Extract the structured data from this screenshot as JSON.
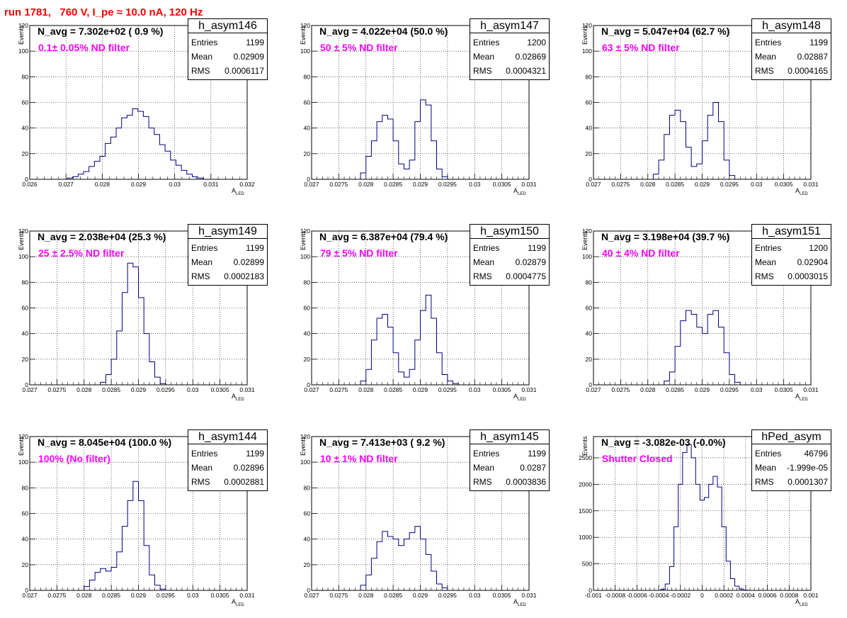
{
  "header": {
    "run_label": "run 1781,   760 V, I_pe ≈ 10.0 nA, 120 Hz"
  },
  "colors": {
    "header": "#ff0000",
    "filter_text": "#ff00ff",
    "hist_line": "#000080",
    "grid": "#000000"
  },
  "axis_labels": {
    "y": "Events",
    "x_main": "A",
    "x_sub": "LED"
  },
  "stat_keys": {
    "entries": "Entries",
    "mean": "Mean",
    "rms": "RMS"
  },
  "chart_data": [
    {
      "type": "bar",
      "title": "h_asym146",
      "n_avg": "N_avg = 7.302e+02 ( 0.9 %)",
      "filter": "0.1± 0.05% ND filter",
      "entries": "1199",
      "mean": "0.02909",
      "rms": "0.0006117",
      "xlim": [
        0.026,
        0.032
      ],
      "ylim": [
        0,
        120
      ],
      "xticks": [
        "0.026",
        "0.027",
        "0.028",
        "0.029",
        "0.03",
        "0.031",
        "0.032"
      ],
      "yticks": [
        "0",
        "20",
        "40",
        "60",
        "80",
        "100",
        "120"
      ],
      "x": [
        0.02711,
        0.02726,
        0.02741,
        0.02756,
        0.02771,
        0.02786,
        0.02801,
        0.02816,
        0.02831,
        0.02846,
        0.02861,
        0.02876,
        0.02891,
        0.02906,
        0.02921,
        0.02936,
        0.02951,
        0.02966,
        0.02981,
        0.02996,
        0.03011,
        0.03026,
        0.03041,
        0.03056,
        0.03071
      ],
      "values": [
        1,
        2,
        4,
        6,
        10,
        14,
        18,
        28,
        33,
        40,
        48,
        50,
        55,
        53,
        49,
        40,
        35,
        27,
        22,
        15,
        11,
        7,
        4,
        2,
        1
      ]
    },
    {
      "type": "bar",
      "title": "h_asym147",
      "n_avg": "N_avg = 4.022e+04 (50.0 %)",
      "filter": "50 ± 5% ND filter",
      "entries": "1200",
      "mean": "0.02869",
      "rms": "0.0004321",
      "xlim": [
        0.027,
        0.031
      ],
      "ylim": [
        0,
        120
      ],
      "xticks": [
        "0.027",
        "0.0275",
        "0.028",
        "0.0285",
        "0.029",
        "0.0295",
        "0.03",
        "0.0305",
        "0.031"
      ],
      "yticks": [
        "0",
        "20",
        "40",
        "60",
        "80",
        "100",
        "120"
      ],
      "x": [
        0.02795,
        0.02805,
        0.02815,
        0.02825,
        0.02835,
        0.02845,
        0.02855,
        0.02865,
        0.02875,
        0.02885,
        0.02895,
        0.02905,
        0.02915,
        0.02925,
        0.02935,
        0.02945
      ],
      "values": [
        5,
        18,
        30,
        45,
        50,
        47,
        30,
        12,
        8,
        15,
        45,
        62,
        58,
        30,
        8,
        2
      ]
    },
    {
      "type": "bar",
      "title": "h_asym148",
      "n_avg": "N_avg = 5.047e+04 (62.7 %)",
      "filter": "63 ± 5% ND filter",
      "entries": "1199",
      "mean": "0.02887",
      "rms": "0.0004165",
      "xlim": [
        0.027,
        0.031
      ],
      "ylim": [
        0,
        120
      ],
      "xticks": [
        "0.027",
        "0.0275",
        "0.028",
        "0.0285",
        "0.029",
        "0.0295",
        "0.03",
        "0.0305",
        "0.031"
      ],
      "yticks": [
        "0",
        "20",
        "40",
        "60",
        "80",
        "100",
        "120"
      ],
      "x": [
        0.02815,
        0.02825,
        0.02835,
        0.02845,
        0.02855,
        0.02865,
        0.02875,
        0.02885,
        0.02895,
        0.02905,
        0.02915,
        0.02925,
        0.02935,
        0.02945,
        0.02955
      ],
      "values": [
        4,
        15,
        35,
        50,
        54,
        45,
        25,
        10,
        12,
        30,
        50,
        60,
        45,
        15,
        3
      ]
    },
    {
      "type": "bar",
      "title": "h_asym149",
      "n_avg": "N_avg = 2.038e+04 (25.3 %)",
      "filter": "25 ± 2.5% ND filter",
      "entries": "1199",
      "mean": "0.02899",
      "rms": "0.0002183",
      "xlim": [
        0.027,
        0.031
      ],
      "ylim": [
        0,
        120
      ],
      "xticks": [
        "0.027",
        "0.0275",
        "0.028",
        "0.0285",
        "0.029",
        "0.0295",
        "0.03",
        "0.0305",
        "0.031"
      ],
      "yticks": [
        "0",
        "20",
        "40",
        "60",
        "80",
        "100",
        "120"
      ],
      "x": [
        0.02835,
        0.02845,
        0.02855,
        0.02865,
        0.02875,
        0.02885,
        0.02895,
        0.02905,
        0.02915,
        0.02925,
        0.02935,
        0.02945
      ],
      "values": [
        2,
        8,
        20,
        42,
        72,
        95,
        92,
        68,
        40,
        18,
        6,
        1
      ]
    },
    {
      "type": "bar",
      "title": "h_asym150",
      "n_avg": "N_avg = 6.387e+04 (79.4 %)",
      "filter": "79 ± 5% ND filter",
      "entries": "1199",
      "mean": "0.02879",
      "rms": "0.0004775",
      "xlim": [
        0.027,
        0.031
      ],
      "ylim": [
        0,
        120
      ],
      "xticks": [
        "0.027",
        "0.0275",
        "0.028",
        "0.0285",
        "0.029",
        "0.0295",
        "0.03",
        "0.0305",
        "0.031"
      ],
      "yticks": [
        "0",
        "20",
        "40",
        "60",
        "80",
        "100",
        "120"
      ],
      "x": [
        0.02795,
        0.02805,
        0.02815,
        0.02825,
        0.02835,
        0.02845,
        0.02855,
        0.02865,
        0.02875,
        0.02885,
        0.02895,
        0.02905,
        0.02915,
        0.02925,
        0.02935,
        0.02945,
        0.02955,
        0.02965
      ],
      "values": [
        3,
        12,
        35,
        52,
        55,
        45,
        25,
        10,
        6,
        12,
        35,
        58,
        70,
        52,
        25,
        8,
        3,
        1
      ]
    },
    {
      "type": "bar",
      "title": "h_asym151",
      "n_avg": "N_avg = 3.198e+04 (39.7 %)",
      "filter": "40 ± 4% ND filter",
      "entries": "1200",
      "mean": "0.02904",
      "rms": "0.0003015",
      "xlim": [
        0.027,
        0.031
      ],
      "ylim": [
        0,
        120
      ],
      "xticks": [
        "0.027",
        "0.0275",
        "0.028",
        "0.0285",
        "0.029",
        "0.0295",
        "0.03",
        "0.0305",
        "0.031"
      ],
      "yticks": [
        "0",
        "20",
        "40",
        "60",
        "80",
        "100",
        "120"
      ],
      "x": [
        0.02835,
        0.02845,
        0.02855,
        0.02865,
        0.02875,
        0.02885,
        0.02895,
        0.02905,
        0.02915,
        0.02925,
        0.02935,
        0.02945,
        0.02955,
        0.02965
      ],
      "values": [
        3,
        10,
        30,
        50,
        58,
        55,
        45,
        40,
        55,
        58,
        45,
        25,
        8,
        2
      ]
    },
    {
      "type": "bar",
      "title": "h_asym144",
      "n_avg": "N_avg = 8.045e+04 (100.0 %)",
      "filter": "100% (No filter)",
      "entries": "1199",
      "mean": "0.02896",
      "rms": "0.0002881",
      "xlim": [
        0.027,
        0.031
      ],
      "ylim": [
        0,
        120
      ],
      "xticks": [
        "0.027",
        "0.0275",
        "0.028",
        "0.0285",
        "0.029",
        "0.0295",
        "0.03",
        "0.0305",
        "0.031"
      ],
      "yticks": [
        "0",
        "20",
        "40",
        "60",
        "80",
        "100",
        "120"
      ],
      "x": [
        0.02805,
        0.02815,
        0.02825,
        0.02835,
        0.02845,
        0.02855,
        0.02865,
        0.02875,
        0.02885,
        0.02895,
        0.02905,
        0.02915,
        0.02925,
        0.02935,
        0.02945
      ],
      "values": [
        3,
        8,
        14,
        17,
        15,
        18,
        30,
        50,
        70,
        85,
        70,
        35,
        12,
        4,
        1
      ]
    },
    {
      "type": "bar",
      "title": "h_asym145",
      "n_avg": "N_avg = 7.413e+03 ( 9.2 %)",
      "filter": "10 ± 1% ND filter",
      "entries": "1199",
      "mean": "0.0287",
      "rms": "0.0003836",
      "xlim": [
        0.027,
        0.031
      ],
      "ylim": [
        0,
        120
      ],
      "xticks": [
        "0.027",
        "0.0275",
        "0.028",
        "0.0285",
        "0.029",
        "0.0295",
        "0.03",
        "0.0305",
        "0.031"
      ],
      "yticks": [
        "0",
        "20",
        "40",
        "60",
        "80",
        "100",
        "120"
      ],
      "x": [
        0.02795,
        0.02805,
        0.02815,
        0.02825,
        0.02835,
        0.02845,
        0.02855,
        0.02865,
        0.02875,
        0.02885,
        0.02895,
        0.02905,
        0.02915,
        0.02925,
        0.02935,
        0.02945
      ],
      "values": [
        4,
        12,
        25,
        38,
        46,
        42,
        40,
        35,
        40,
        45,
        50,
        40,
        28,
        15,
        5,
        2
      ]
    },
    {
      "type": "bar",
      "title": "hPed_asym",
      "n_avg": "N_avg = -3.082e-03 (-0.0%)",
      "filter": "Shutter Closed",
      "entries": "46796",
      "mean": "-1.999e-05",
      "rms": "0.0001307",
      "xlim": [
        -0.001,
        0.001
      ],
      "ylim": [
        0,
        2900
      ],
      "xticks": [
        "-0.001",
        "-0.0008",
        "-0.0006",
        "-0.0004",
        "-0.0002",
        "0",
        "0.0002",
        "0.0004",
        "0.0006",
        "0.0008",
        "0.001"
      ],
      "yticks": [
        "0",
        "500",
        "1000",
        "1500",
        "2000",
        "2500"
      ],
      "x": [
        -0.00036,
        -0.00032,
        -0.00028,
        -0.00024,
        -0.0002,
        -0.00016,
        -0.00012,
        -8e-05,
        -4e-05,
        0.0,
        4e-05,
        8e-05,
        0.00012,
        0.00016,
        0.0002,
        0.00024,
        0.00028,
        0.00032,
        0.00036,
        0.0004
      ],
      "values": [
        20,
        120,
        450,
        1200,
        2000,
        2600,
        2750,
        2500,
        2000,
        1700,
        1750,
        2000,
        2150,
        1950,
        1200,
        550,
        220,
        80,
        25,
        5
      ]
    }
  ]
}
